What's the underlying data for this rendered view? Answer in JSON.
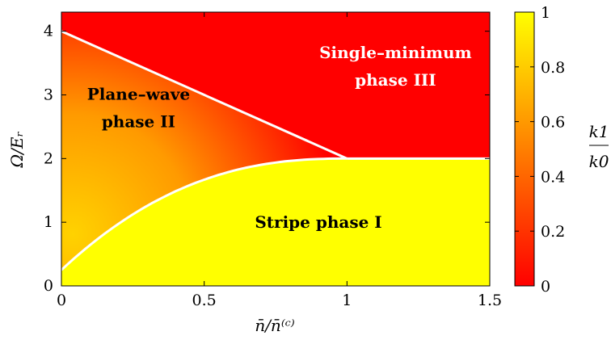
{
  "chart_data": {
    "type": "heatmap",
    "xlabel": "n̄/n̄⁽ᶜ⁾",
    "ylabel": "Ω/Eᵣ",
    "xlim": [
      0,
      1.5
    ],
    "ylim": [
      0,
      4.3
    ],
    "xticks": [
      {
        "value": 0,
        "label": "0"
      },
      {
        "value": 0.5,
        "label": "0.5"
      },
      {
        "value": 1,
        "label": "1"
      },
      {
        "value": 1.5,
        "label": "1.5"
      }
    ],
    "yticks": [
      {
        "value": 0,
        "label": "0"
      },
      {
        "value": 1,
        "label": "1"
      },
      {
        "value": 2,
        "label": "2"
      },
      {
        "value": 3,
        "label": "3"
      },
      {
        "value": 4,
        "label": "4"
      }
    ],
    "colorbar": {
      "label_num": "k1",
      "label_den": "k0",
      "range": [
        0,
        1
      ],
      "low_color": "#ff0000",
      "high_color": "#ffff00",
      "ticks": [
        {
          "value": 0,
          "label": "0"
        },
        {
          "value": 0.2,
          "label": "0.2"
        },
        {
          "value": 0.4,
          "label": "0.4"
        },
        {
          "value": 0.6,
          "label": "0.6"
        },
        {
          "value": 0.8,
          "label": "0.8"
        },
        {
          "value": 1,
          "label": "1"
        }
      ]
    },
    "boundaries": {
      "upper_line": {
        "from": [
          0,
          4
        ],
        "to": [
          1,
          2
        ]
      },
      "lower_curve": {
        "start": [
          0,
          0.25
        ],
        "end": [
          1,
          2
        ]
      },
      "plateau": {
        "y": 2,
        "from_x": 1,
        "to_x": 1.5
      }
    },
    "annotations": [
      {
        "id": "phase1",
        "line1": "Stripe phase I",
        "x": 0.9,
        "y": 1.0,
        "color": "#000000"
      },
      {
        "id": "phase2",
        "line1": "Plane–wave",
        "line2": "phase II",
        "x": 0.27,
        "y": 2.8,
        "color": "#000000"
      },
      {
        "id": "phase3",
        "line1": "Single–minimum",
        "line2": "phase III",
        "x": 1.17,
        "y": 3.45,
        "color": "#ffffff"
      }
    ]
  }
}
